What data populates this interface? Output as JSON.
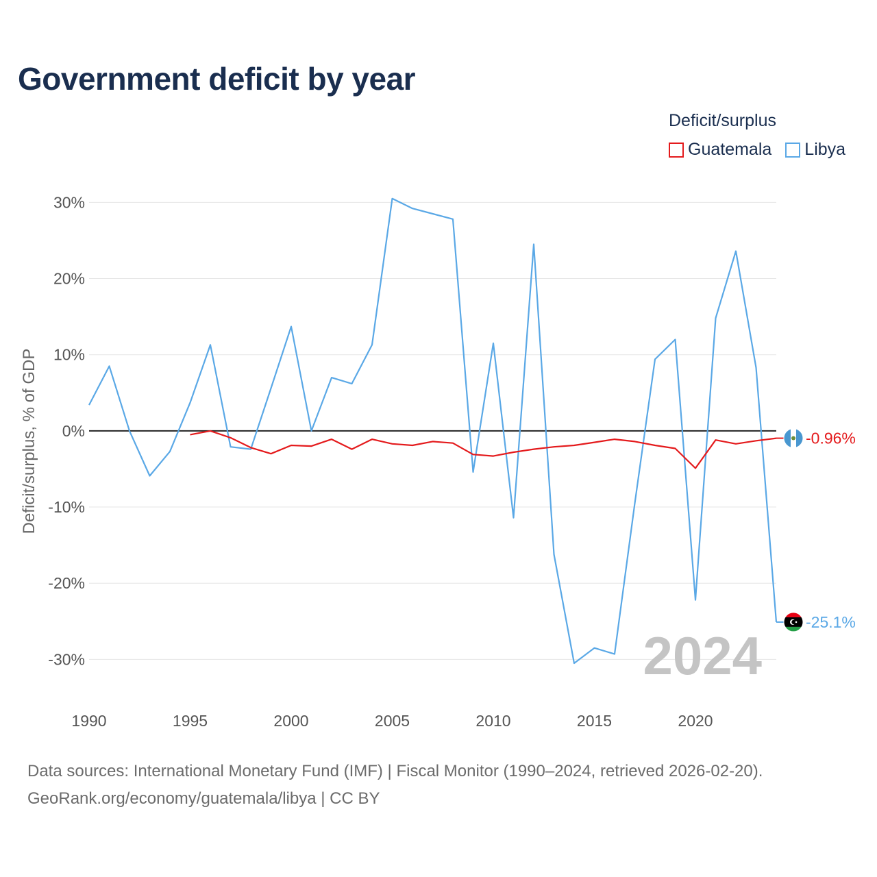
{
  "chart_data": {
    "type": "line",
    "title": "Government deficit by year",
    "xlabel": "",
    "ylabel": "Deficit/surplus, % of GDP",
    "xlim": [
      1990,
      2024
    ],
    "ylim": [
      -35,
      33
    ],
    "x_ticks": [
      1990,
      1995,
      2000,
      2005,
      2010,
      2015,
      2020
    ],
    "y_ticks": [
      30,
      20,
      10,
      0,
      -10,
      -20,
      -30
    ],
    "y_tick_labels": [
      "30%",
      "20%",
      "10%",
      "0%",
      "-10%",
      "-20%",
      "-30%"
    ],
    "grid": true,
    "legend_title": "Deficit/surplus",
    "legend_position": "top-right",
    "current_year": "2024",
    "series": [
      {
        "name": "Guatemala",
        "color": "#e41a1c",
        "end_label": "-0.96%",
        "flag": "guatemala-flag",
        "x": [
          1995,
          1996,
          1997,
          1998,
          1999,
          2000,
          2001,
          2002,
          2003,
          2004,
          2005,
          2006,
          2007,
          2008,
          2009,
          2010,
          2011,
          2012,
          2013,
          2014,
          2015,
          2016,
          2017,
          2018,
          2019,
          2020,
          2021,
          2022,
          2023,
          2024
        ],
        "values": [
          -0.5,
          0.0,
          -0.9,
          -2.2,
          -3.0,
          -1.9,
          -2.0,
          -1.1,
          -2.4,
          -1.1,
          -1.7,
          -1.9,
          -1.4,
          -1.6,
          -3.1,
          -3.3,
          -2.8,
          -2.4,
          -2.1,
          -1.9,
          -1.5,
          -1.1,
          -1.4,
          -1.9,
          -2.3,
          -4.9,
          -1.2,
          -1.7,
          -1.3,
          -0.96
        ]
      },
      {
        "name": "Libya",
        "color": "#5aa8e6",
        "end_label": "-25.1%",
        "flag": "libya-flag",
        "x": [
          1990,
          1991,
          1992,
          1993,
          1994,
          1995,
          1996,
          1997,
          1998,
          1999,
          2000,
          2001,
          2002,
          2003,
          2004,
          2005,
          2006,
          2007,
          2008,
          2009,
          2010,
          2011,
          2012,
          2013,
          2014,
          2015,
          2016,
          2017,
          2018,
          2019,
          2020,
          2021,
          2022,
          2023,
          2024
        ],
        "values": [
          3.4,
          8.5,
          0.0,
          -5.9,
          -2.7,
          3.7,
          11.3,
          -2.1,
          -2.4,
          5.6,
          13.7,
          0.0,
          7.0,
          6.2,
          11.3,
          30.5,
          29.2,
          28.5,
          27.8,
          -5.4,
          11.5,
          -11.4,
          24.5,
          -16.2,
          -30.5,
          -28.5,
          -29.3,
          -9.5,
          9.4,
          12.0,
          -22.2,
          14.8,
          23.6,
          8.3,
          -25.1
        ]
      }
    ]
  },
  "footer": {
    "line1": "Data sources: International Monetary Fund (IMF) | Fiscal Monitor (1990–2024, retrieved 2026-02-20).",
    "line2": "GeoRank.org/economy/guatemala/libya | CC BY"
  }
}
